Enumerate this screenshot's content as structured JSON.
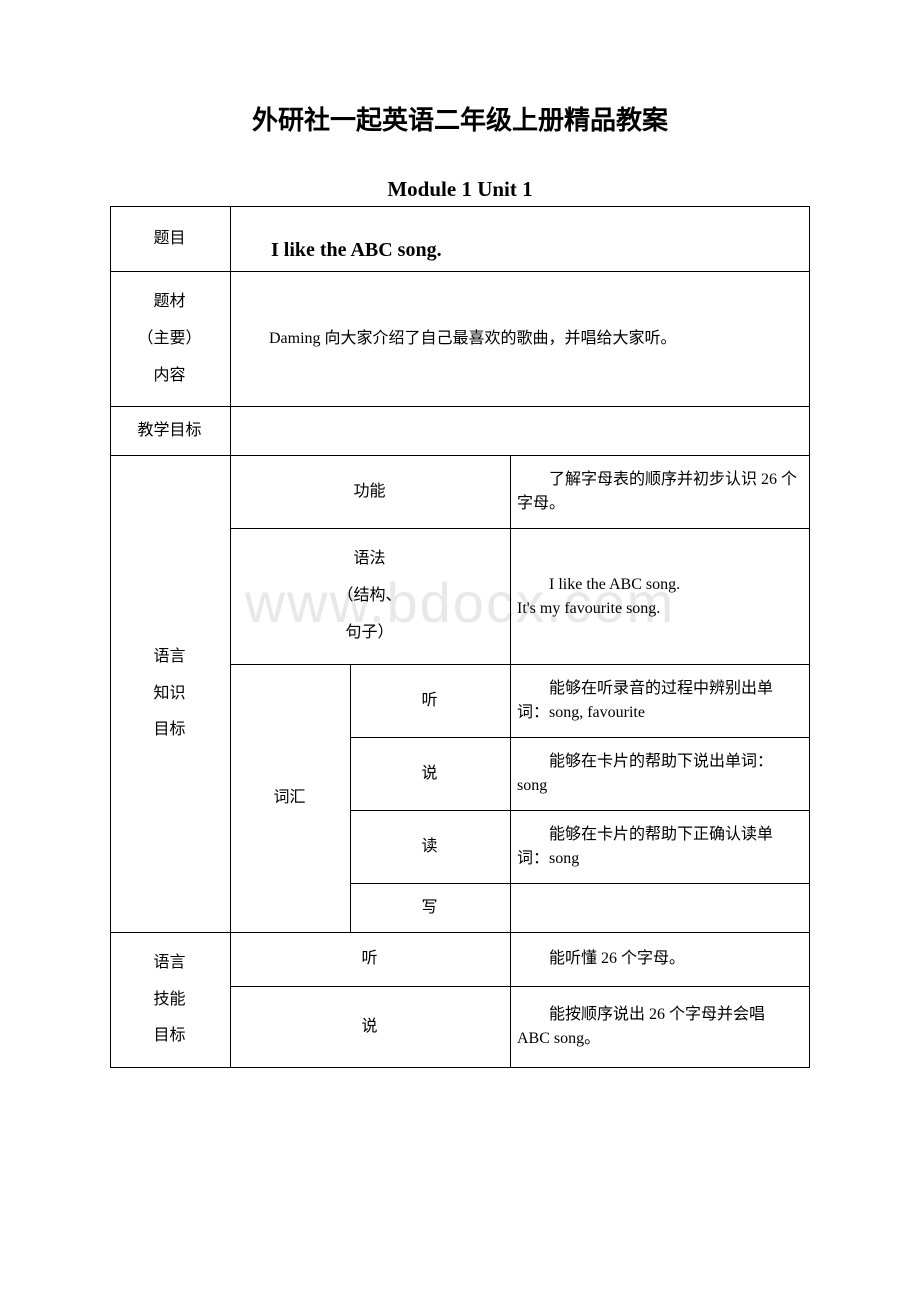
{
  "page_title": "外研社一起英语二年级上册精品教案",
  "module_title": "Module 1 Unit 1",
  "watermark": "www.bdocx.com",
  "table": {
    "r1c1": "题目",
    "r1c2": "I like the ABC song.",
    "r2c1": "题材\n（主要）\n内容",
    "r2c2": "Daming 向大家介绍了自己最喜欢的歌曲，并唱给大家听。",
    "r3c1": "教学目标",
    "r4c1": "语言\n知识\n目标",
    "r4_func_label": "功能",
    "r4_func_text": "了解字母表的顺序并初步认识 26 个字母。",
    "r4_grammar_label": "语法\n（结构、\n句子）",
    "r4_grammar_text": "I like the ABC song.\nIt's my favourite song.",
    "r4_vocab_label": "词汇",
    "r4_listen_label": "听",
    "r4_listen_text": "能够在听录音的过程中辨别出单词：song, favourite",
    "r4_speak_label": "说",
    "r4_speak_text": "能够在卡片的帮助下说出单词：song",
    "r4_read_label": "读",
    "r4_read_text": "能够在卡片的帮助下正确认读单词：song",
    "r4_write_label": "写",
    "r4_write_text": "",
    "r5c1": "语言\n技能\n目标",
    "r5_listen_label": "听",
    "r5_listen_text": "能听懂 26 个字母。",
    "r5_speak_label": "说",
    "r5_speak_text": "能按顺序说出 26 个字母并会唱 ABC song。"
  }
}
